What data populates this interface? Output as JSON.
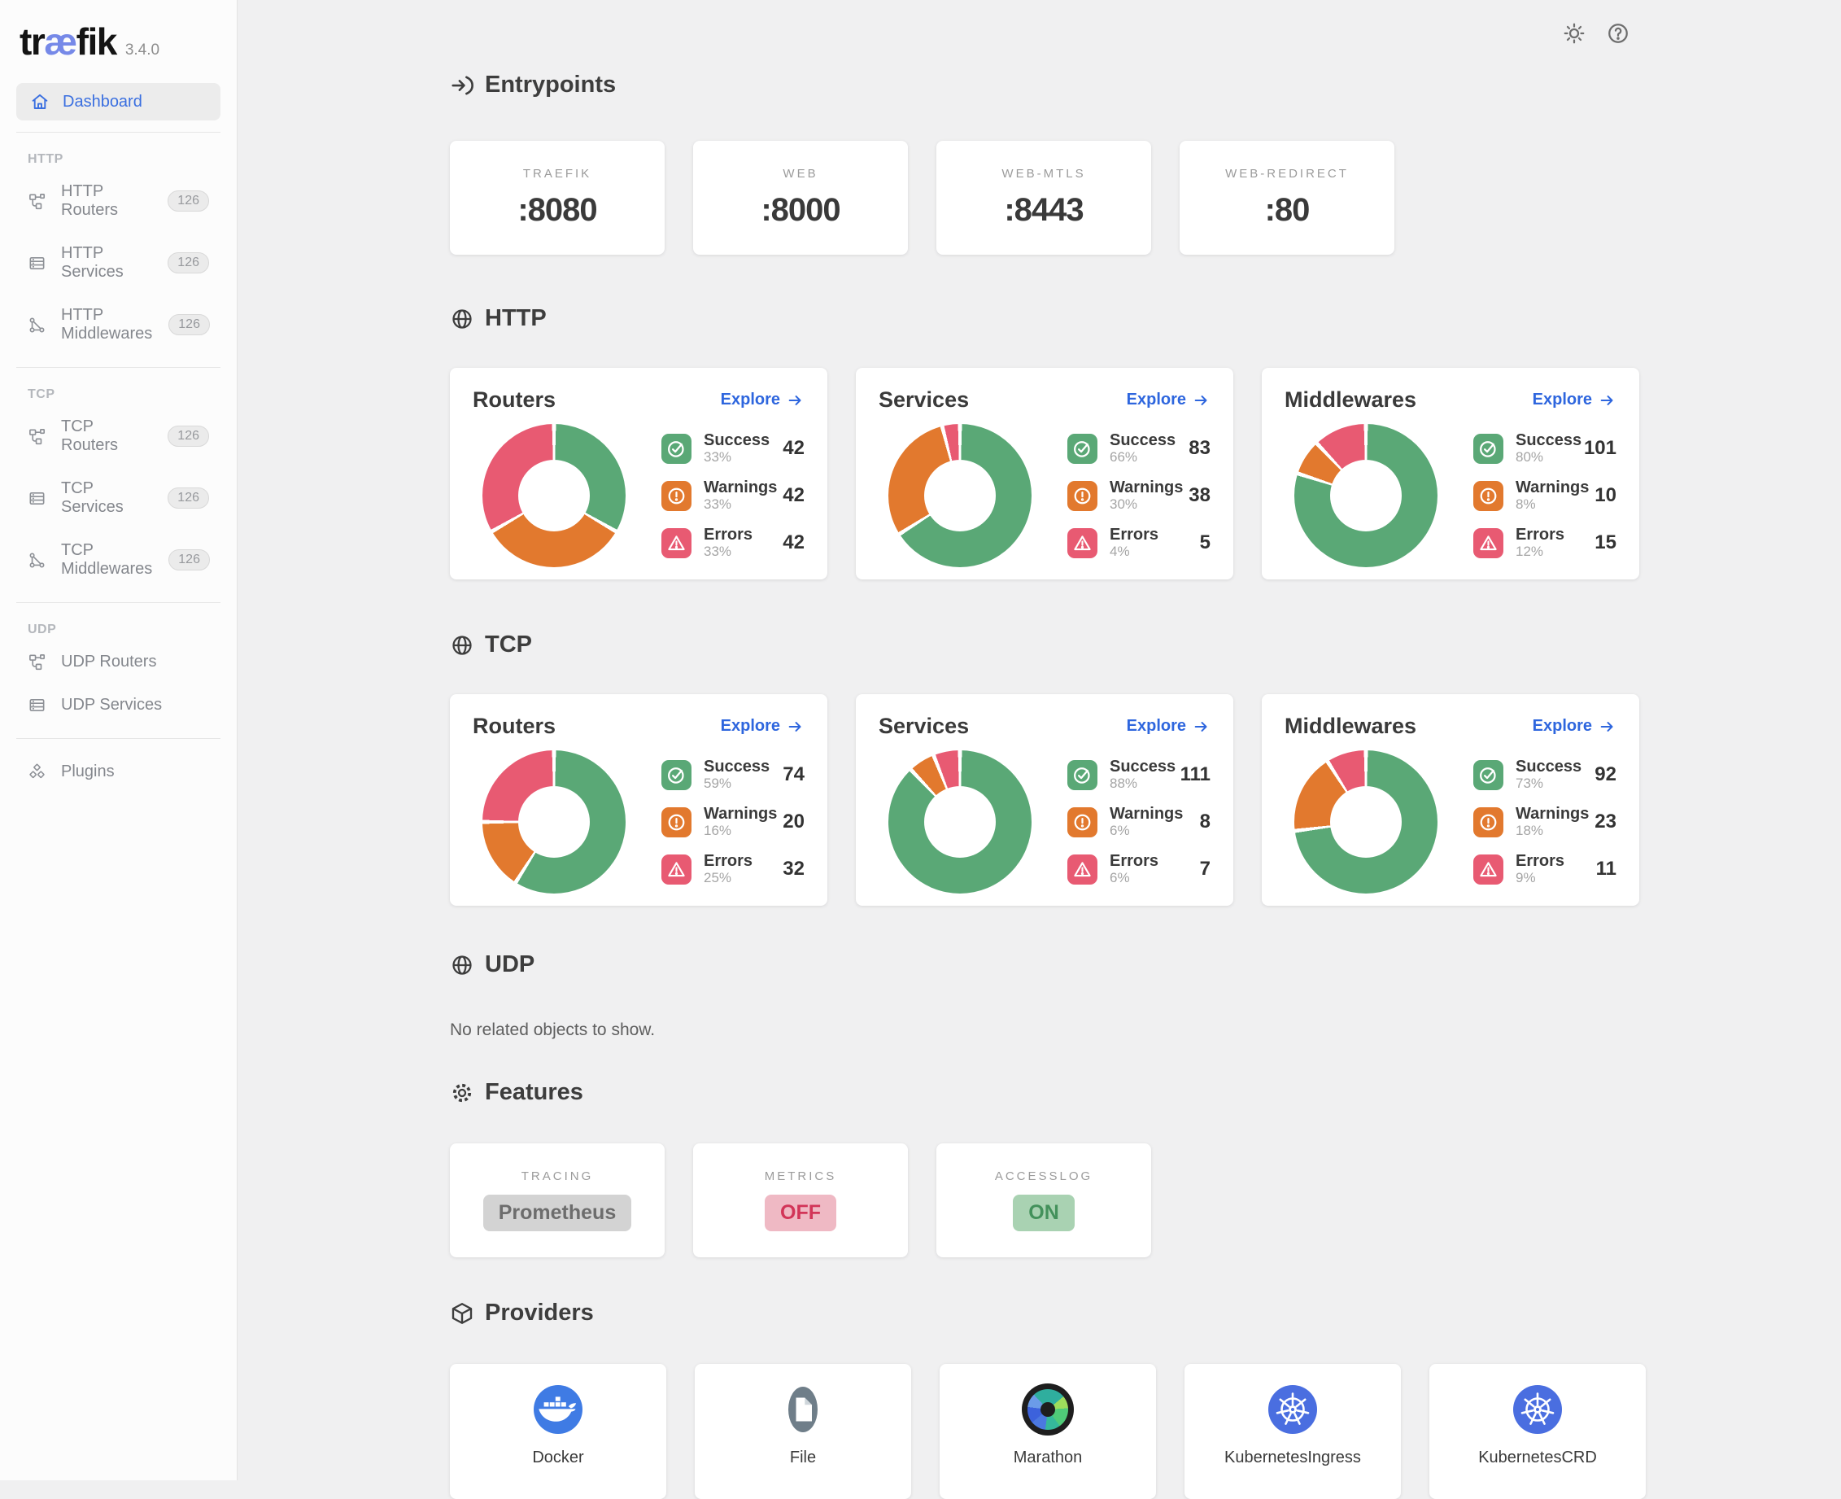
{
  "app": {
    "logo_pre": "tr",
    "logo_ae": "æ",
    "logo_post": "fik",
    "version": "3.4.0"
  },
  "sidebar": {
    "dashboard_label": "Dashboard",
    "groups": [
      {
        "label": "HTTP",
        "items": [
          {
            "label": "HTTP Routers",
            "badge": "126"
          },
          {
            "label": "HTTP Services",
            "badge": "126"
          },
          {
            "label": "HTTP Middlewares",
            "badge": "126"
          }
        ]
      },
      {
        "label": "TCP",
        "items": [
          {
            "label": "TCP Routers",
            "badge": "126"
          },
          {
            "label": "TCP Services",
            "badge": "126"
          },
          {
            "label": "TCP Middlewares",
            "badge": "126"
          }
        ]
      },
      {
        "label": "UDP",
        "items": [
          {
            "label": "UDP Routers"
          },
          {
            "label": "UDP Services"
          }
        ]
      }
    ],
    "plugins_label": "Plugins"
  },
  "entrypoints": {
    "title": "Entrypoints",
    "cards": [
      {
        "name": "TRAEFIK",
        "port": ":8080"
      },
      {
        "name": "WEB",
        "port": ":8000"
      },
      {
        "name": "WEB-MTLS",
        "port": ":8443"
      },
      {
        "name": "WEB-REDIRECT",
        "port": ":80"
      }
    ]
  },
  "http_section": {
    "title": "HTTP"
  },
  "tcp_section": {
    "title": "TCP"
  },
  "udp_section": {
    "title": "UDP",
    "empty_text": "No related objects to show."
  },
  "explore_label": "Explore",
  "chart_data": [
    {
      "type": "pie",
      "section": "HTTP",
      "title": "Routers",
      "labels": [
        "Success",
        "Warnings",
        "Errors"
      ],
      "percents": [
        33,
        33,
        33
      ],
      "values": [
        42,
        42,
        42
      ],
      "legend_position": "right"
    },
    {
      "type": "pie",
      "section": "HTTP",
      "title": "Services",
      "labels": [
        "Success",
        "Warnings",
        "Errors"
      ],
      "percents": [
        66,
        30,
        4
      ],
      "values": [
        83,
        38,
        5
      ],
      "legend_position": "right"
    },
    {
      "type": "pie",
      "section": "HTTP",
      "title": "Middlewares",
      "labels": [
        "Success",
        "Warnings",
        "Errors"
      ],
      "percents": [
        80,
        8,
        12
      ],
      "values": [
        101,
        10,
        15
      ],
      "legend_position": "right"
    },
    {
      "type": "pie",
      "section": "TCP",
      "title": "Routers",
      "labels": [
        "Success",
        "Warnings",
        "Errors"
      ],
      "percents": [
        59,
        16,
        25
      ],
      "values": [
        74,
        20,
        32
      ],
      "legend_position": "right"
    },
    {
      "type": "pie",
      "section": "TCP",
      "title": "Services",
      "labels": [
        "Success",
        "Warnings",
        "Errors"
      ],
      "percents": [
        88,
        6,
        6
      ],
      "values": [
        111,
        8,
        7
      ],
      "legend_position": "right"
    },
    {
      "type": "pie",
      "section": "TCP",
      "title": "Middlewares",
      "labels": [
        "Success",
        "Warnings",
        "Errors"
      ],
      "percents": [
        73,
        18,
        9
      ],
      "values": [
        92,
        23,
        11
      ],
      "legend_position": "right"
    }
  ],
  "features": {
    "title": "Features",
    "cards": [
      {
        "label": "TRACING",
        "value": "Prometheus",
        "state": "neutral"
      },
      {
        "label": "METRICS",
        "value": "OFF",
        "state": "off"
      },
      {
        "label": "ACCESSLOG",
        "value": "ON",
        "state": "on"
      }
    ]
  },
  "providers": {
    "title": "Providers",
    "items": [
      {
        "name": "Docker",
        "icon": "docker-icon"
      },
      {
        "name": "File",
        "icon": "file-icon"
      },
      {
        "name": "Marathon",
        "icon": "marathon-icon"
      },
      {
        "name": "KubernetesIngress",
        "icon": "kubernetes-icon"
      },
      {
        "name": "KubernetesCRD",
        "icon": "kubernetes-icon"
      }
    ]
  },
  "colors": {
    "success": "#5AA876",
    "warning": "#E2792E",
    "error": "#E85A72",
    "link": "#2E66DE",
    "accent": "#7689E8",
    "pill_on_bg": "#A9D2B2",
    "pill_on_text": "#43915B",
    "pill_off_bg": "#EFB9C4",
    "pill_off_text": "#D23558",
    "pill_neutral_bg": "#D3D3D3",
    "pill_neutral_text": "#6D6D6D"
  }
}
